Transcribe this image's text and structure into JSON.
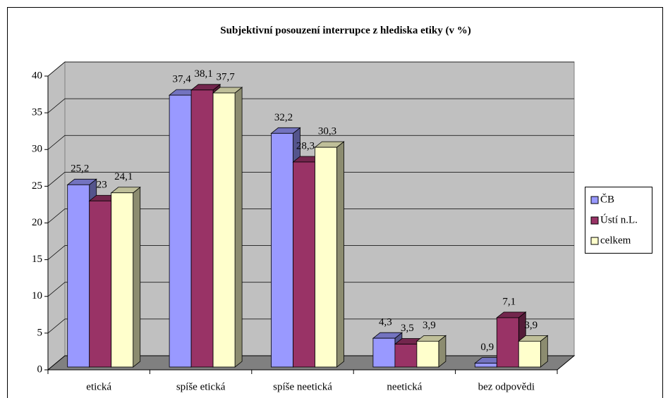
{
  "chart_data": {
    "type": "bar3d",
    "title": "Subjektivní posouzení interrupce z hlediska etiky (v %)",
    "categories": [
      "etická",
      "spíše etická",
      "spíše neetická",
      "neetická",
      "bez odpovědi"
    ],
    "series": [
      {
        "name": "ČB",
        "color": "#9999ff",
        "values": [
          25.2,
          37.4,
          32.2,
          4.3,
          0.9
        ],
        "value_labels": [
          "25,2",
          "37,4",
          "32,2",
          "4,3",
          "0,9"
        ]
      },
      {
        "name": "Ústí n.L.",
        "color": "#993366",
        "values": [
          23,
          38.1,
          28.3,
          3.5,
          7.1
        ],
        "value_labels": [
          "23",
          "38,1",
          "28,3",
          "3,5",
          "7,1"
        ]
      },
      {
        "name": "celkem",
        "color": "#ffffcc",
        "values": [
          24.1,
          37.7,
          30.3,
          3.9,
          3.9
        ],
        "value_labels": [
          "24,1",
          "37,7",
          "30,3",
          "3,9",
          "3,9"
        ]
      }
    ],
    "ylim": [
      0,
      40
    ],
    "yticks": [
      0,
      5,
      10,
      15,
      20,
      25,
      30,
      35,
      40
    ],
    "grid": true,
    "legend": "right"
  }
}
